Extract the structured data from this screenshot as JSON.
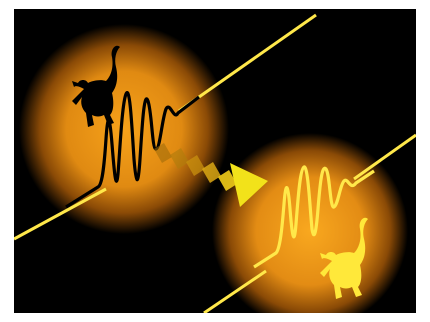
{
  "image": {
    "elements": [
      "source-orb",
      "target-orb",
      "transfer-arrow",
      "black-cat-silhouette",
      "yellow-cat-silhouette",
      "wave-packet-black",
      "wave-packet-yellow"
    ],
    "colors": {
      "background": "#000000",
      "frame": "#ffffff",
      "orb_core": "#f7a21a",
      "orb_edge": "#3a1b00",
      "beam": "#ffe84a",
      "arrow": "#f2e21a",
      "cat_dark": "#000000",
      "cat_light": "#ffe83a"
    }
  }
}
